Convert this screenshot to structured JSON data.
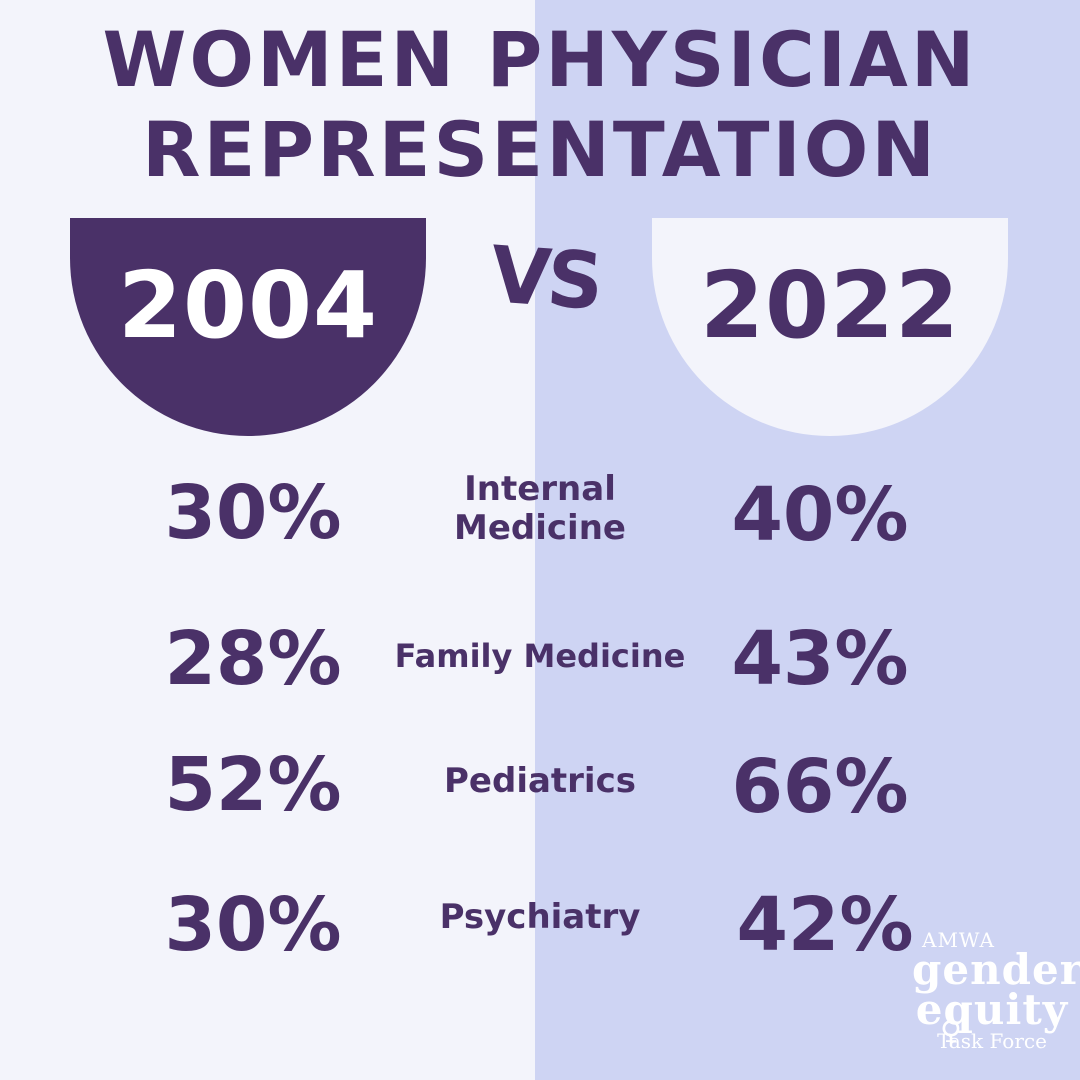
{
  "title": {
    "line1": "WOMEN PHYSICIAN",
    "line2": "REPRESENTATION"
  },
  "years": {
    "left": "2004",
    "right": "2022"
  },
  "vs": "VS",
  "rows": [
    {
      "specialty": "Internal Medicine",
      "y2004": "30%",
      "y2022": "40%"
    },
    {
      "specialty": "Family Medicine",
      "y2004": "28%",
      "y2022": "43%"
    },
    {
      "specialty": "Pediatrics",
      "y2004": "52%",
      "y2022": "66%"
    },
    {
      "specialty": "Psychiatry",
      "y2004": "30%",
      "y2022": "42%"
    }
  ],
  "logo": {
    "org": "AMWA",
    "line1": "gender",
    "line2": "equity",
    "line3": "Task Force",
    "symbol": "female-symbol-icon"
  },
  "colors": {
    "purple": "#4a3168",
    "left_bg": "#f3f4fb",
    "right_bg": "#ced4f3",
    "white": "#ffffff"
  }
}
